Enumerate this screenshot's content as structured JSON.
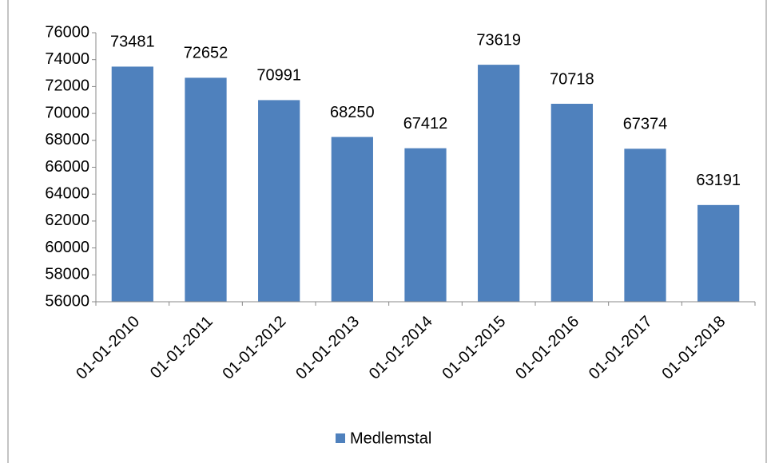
{
  "chart_data": {
    "type": "bar",
    "categories": [
      "01-01-2010",
      "01-01-2011",
      "01-01-2012",
      "01-01-2013",
      "01-01-2014",
      "01-01-2015",
      "01-01-2016",
      "01-01-2017",
      "01-01-2018"
    ],
    "series": [
      {
        "name": "Medlemstal",
        "color": "#4f81bd",
        "values": [
          73481,
          72652,
          70991,
          68250,
          67412,
          73619,
          70718,
          67374,
          63191
        ]
      }
    ],
    "ylim": [
      56000,
      76000
    ],
    "yticks": [
      56000,
      58000,
      60000,
      62000,
      64000,
      66000,
      68000,
      70000,
      72000,
      74000,
      76000
    ],
    "grid": false,
    "data_labels": true,
    "legend": "bottom"
  }
}
